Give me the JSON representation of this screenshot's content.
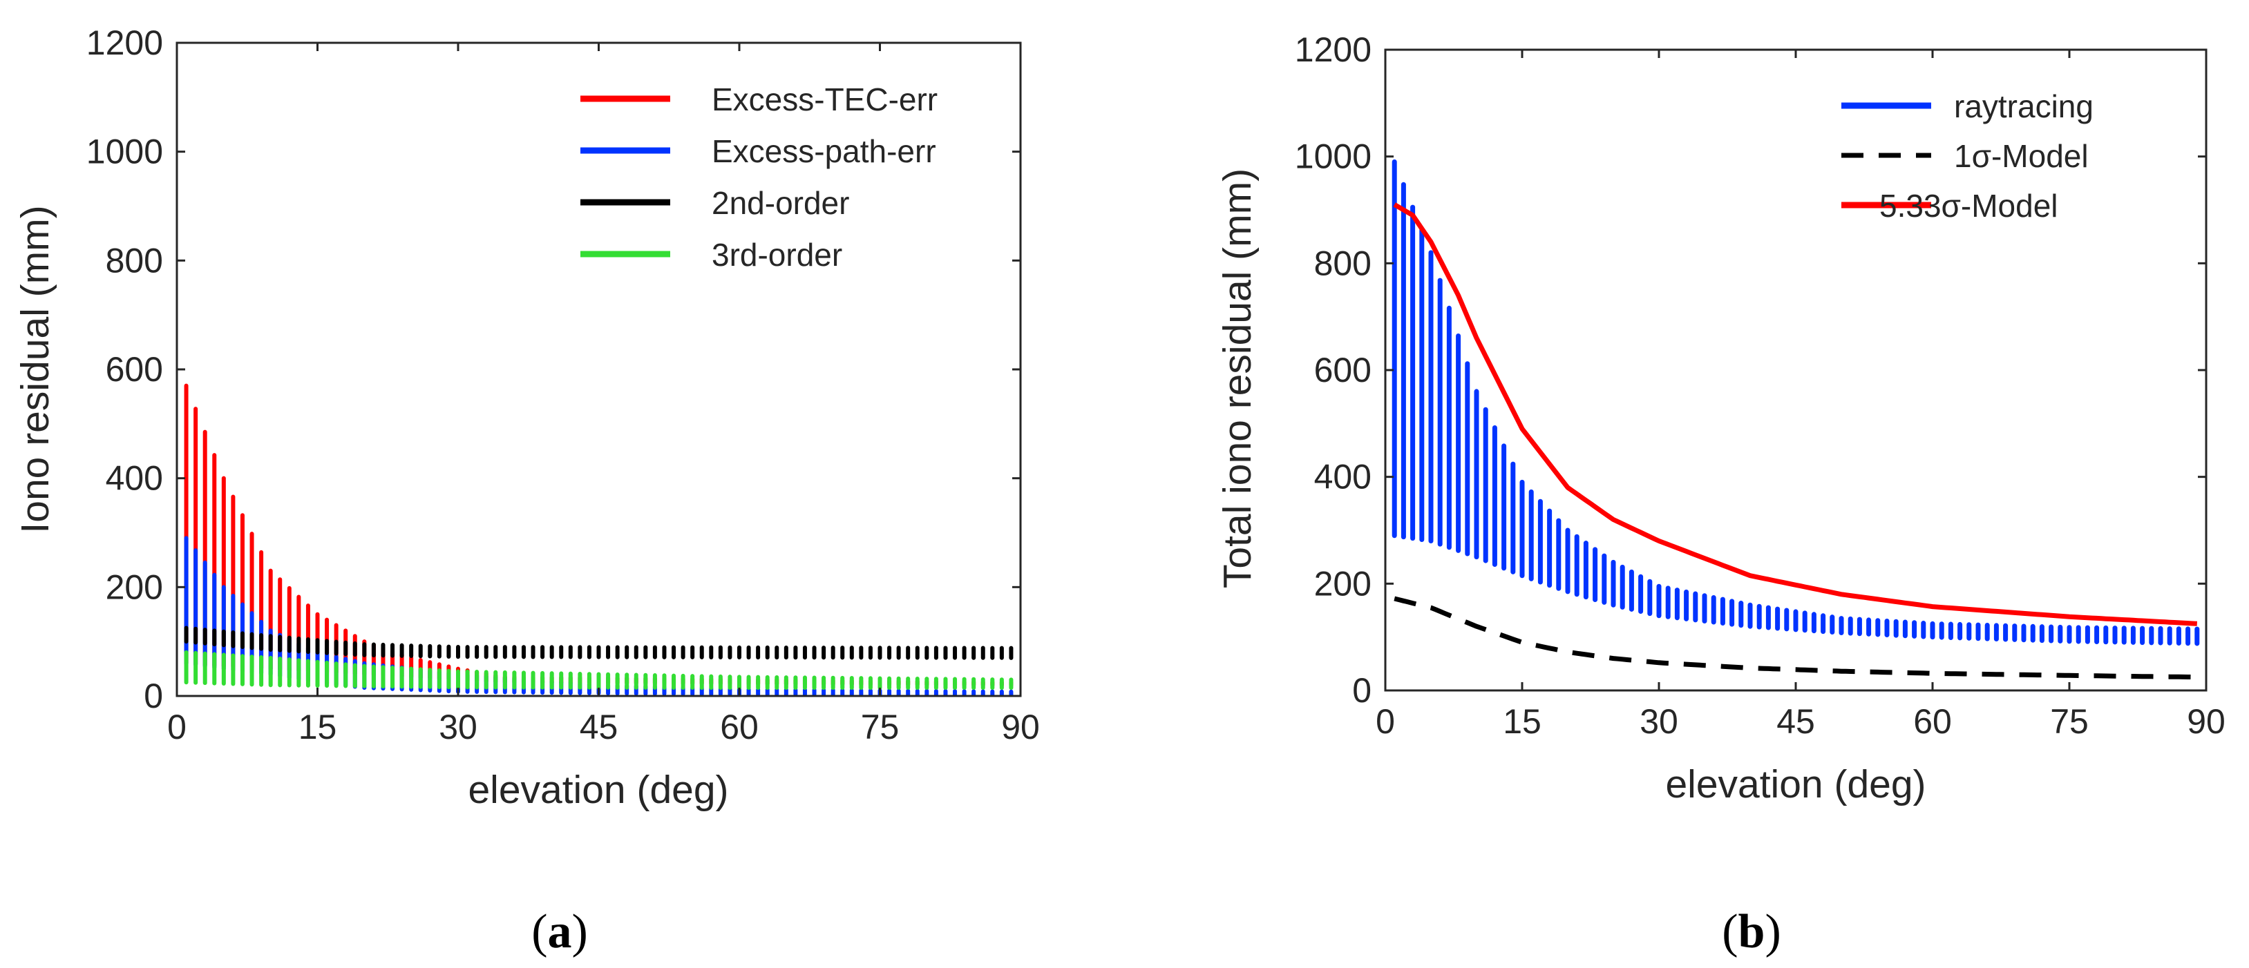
{
  "chart_data": [
    {
      "id": "a",
      "type": "scatter",
      "caption_letter": "a",
      "xlabel": "elevation  (deg)",
      "ylabel": "Iono residual  (mm)",
      "xlim": [
        0,
        90
      ],
      "ylim": [
        0,
        1200
      ],
      "xticks": [
        "0",
        "15",
        "30",
        "45",
        "60",
        "75",
        "90"
      ],
      "yticks": [
        "0",
        "200",
        "400",
        "600",
        "800",
        "1000",
        "1200"
      ],
      "legend_position": "top-right",
      "elevation_start": 1,
      "elevation_end": 89,
      "elevation_step": 1,
      "series": [
        {
          "name": "Excess-TEC-err",
          "color": "#ff0000",
          "kind": "range",
          "x": [
            1,
            5,
            10,
            15,
            20,
            25,
            30,
            35,
            89
          ],
          "min": [
            60,
            55,
            50,
            45,
            40,
            35,
            30,
            25,
            20
          ],
          "max": [
            570,
            400,
            230,
            150,
            100,
            70,
            50,
            35,
            25
          ]
        },
        {
          "name": "Excess-path-err",
          "color": "#0033ff",
          "kind": "range",
          "x": [
            1,
            5,
            10,
            15,
            20,
            30,
            45,
            60,
            89
          ],
          "min": [
            60,
            50,
            40,
            25,
            15,
            8,
            5,
            3,
            2
          ],
          "max": [
            290,
            200,
            120,
            80,
            60,
            40,
            20,
            12,
            8
          ]
        },
        {
          "name": "2nd-order",
          "color": "#000000",
          "kind": "range",
          "x": [
            1,
            10,
            20,
            30,
            89
          ],
          "min": [
            100,
            85,
            75,
            72,
            70
          ],
          "max": [
            125,
            110,
            95,
            90,
            88
          ]
        },
        {
          "name": "3rd-order",
          "color": "#33dd33",
          "kind": "range",
          "x": [
            1,
            10,
            20,
            30,
            60,
            89
          ],
          "min": [
            25,
            20,
            18,
            16,
            15,
            15
          ],
          "max": [
            80,
            70,
            55,
            45,
            35,
            30
          ]
        }
      ]
    },
    {
      "id": "b",
      "type": "scatter",
      "caption_letter": "b",
      "xlabel": "elevation  (deg)",
      "ylabel": "Total iono residual  (mm)",
      "xlim": [
        0,
        90
      ],
      "ylim": [
        0,
        1200
      ],
      "xticks": [
        "0",
        "15",
        "30",
        "45",
        "60",
        "75",
        "90"
      ],
      "yticks": [
        "0",
        "200",
        "400",
        "600",
        "800",
        "1000",
        "1200"
      ],
      "legend_position": "top-right",
      "elevation_start": 1,
      "elevation_end": 89,
      "elevation_step": 1,
      "series": [
        {
          "name": "raytracing",
          "color": "#0033ff",
          "kind": "range",
          "x": [
            1,
            5,
            10,
            15,
            20,
            25,
            30,
            40,
            50,
            60,
            75,
            89
          ],
          "min": [
            290,
            280,
            250,
            215,
            185,
            160,
            140,
            120,
            108,
            100,
            92,
            88
          ],
          "max": [
            990,
            820,
            560,
            390,
            300,
            240,
            195,
            160,
            135,
            125,
            118,
            115
          ]
        },
        {
          "name": "1σ-Model",
          "color": "#000000",
          "kind": "dashed",
          "x": [
            1,
            5,
            10,
            15,
            20,
            25,
            30,
            40,
            50,
            60,
            75,
            89
          ],
          "y": [
            172,
            155,
            120,
            90,
            72,
            60,
            52,
            42,
            36,
            32,
            28,
            25
          ]
        },
        {
          "name": "5.33σ-Model",
          "color": "#ff0000",
          "kind": "solid",
          "x": [
            1,
            3,
            5,
            8,
            10,
            15,
            20,
            25,
            30,
            40,
            50,
            60,
            75,
            89
          ],
          "y": [
            910,
            890,
            840,
            740,
            660,
            490,
            380,
            320,
            280,
            215,
            180,
            157,
            138,
            125
          ]
        }
      ]
    }
  ]
}
